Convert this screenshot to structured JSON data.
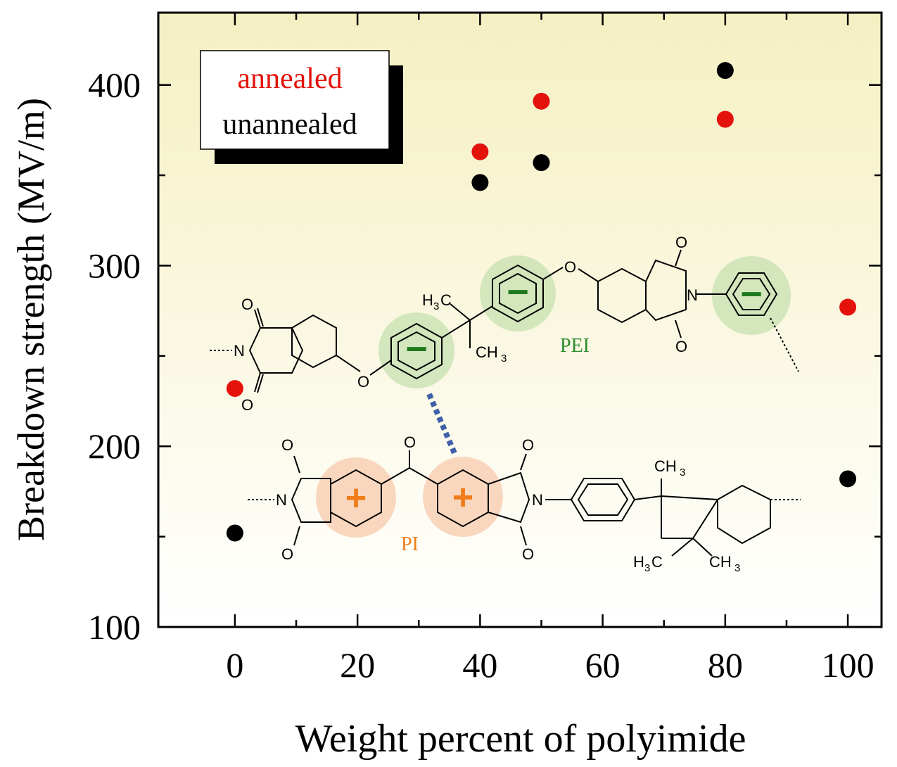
{
  "chart_data": {
    "type": "scatter",
    "xlabel": "Weight percent of polyimide",
    "ylabel": "Breakdown strength (MV/m)",
    "xlim": [
      -12.5,
      105.5
    ],
    "ylim": [
      100,
      440
    ],
    "xticks": [
      0,
      20,
      40,
      60,
      80,
      100
    ],
    "yticks": [
      100,
      200,
      300,
      400
    ],
    "series": [
      {
        "name": "annealed",
        "color": "#e3120b",
        "x": [
          0,
          40,
          50,
          80,
          100
        ],
        "y": [
          232,
          363,
          391,
          381,
          277
        ]
      },
      {
        "name": "unannealed",
        "color": "#000000",
        "x": [
          0,
          40,
          50,
          80,
          100
        ],
        "y": [
          152,
          346,
          357,
          408,
          182
        ]
      }
    ],
    "legend_position": "top-left",
    "grid": false,
    "background_gradient": [
      "#f5f0c2",
      "#ffffff"
    ]
  },
  "structure": {
    "pei_label": "PEI",
    "pi_label": "PI",
    "pei_color": "#2e8b2e",
    "pi_color": "#f07c1a",
    "interaction_color": "#3f5fa8",
    "atom_O": "O",
    "atom_N": "N",
    "group_H": "H",
    "group_C": "C",
    "group_CH": "CH",
    "sub_3": "3",
    "minus_sign": "−",
    "plus_sign": "+"
  }
}
